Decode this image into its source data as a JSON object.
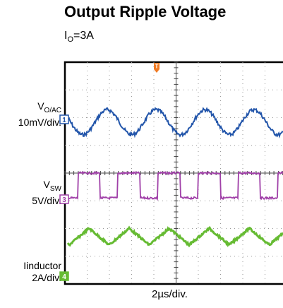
{
  "chart_data": {
    "type": "line",
    "title": "Output Ripple Voltage",
    "subtitle": {
      "base": "I",
      "sub": "O",
      "rest": "=3A"
    },
    "xlabel": "2µs/div.",
    "grid": true,
    "trigger_marker": "T",
    "series": [
      {
        "name": {
          "base": "V",
          "sub": "O/AC"
        },
        "scale": "10mV/div.",
        "marker": "1",
        "color": "#2255aa",
        "waveform": "sine",
        "amplitude_div": 0.45,
        "period_div": 2.2
      },
      {
        "name": {
          "base": "V",
          "sub": "SW"
        },
        "scale": "5V/div.",
        "marker": "3",
        "color": "#a040a8",
        "waveform": "square",
        "high_div": 0,
        "low_div": 0.9,
        "period_div": 1.8,
        "duty": 0.22
      },
      {
        "name": {
          "base": "Iinductor",
          "sub": ""
        },
        "scale": "2A/div.",
        "marker": "4",
        "color": "#66bb33",
        "waveform": "triangle",
        "amplitude_div": 0.3,
        "period_div": 1.8
      }
    ]
  }
}
